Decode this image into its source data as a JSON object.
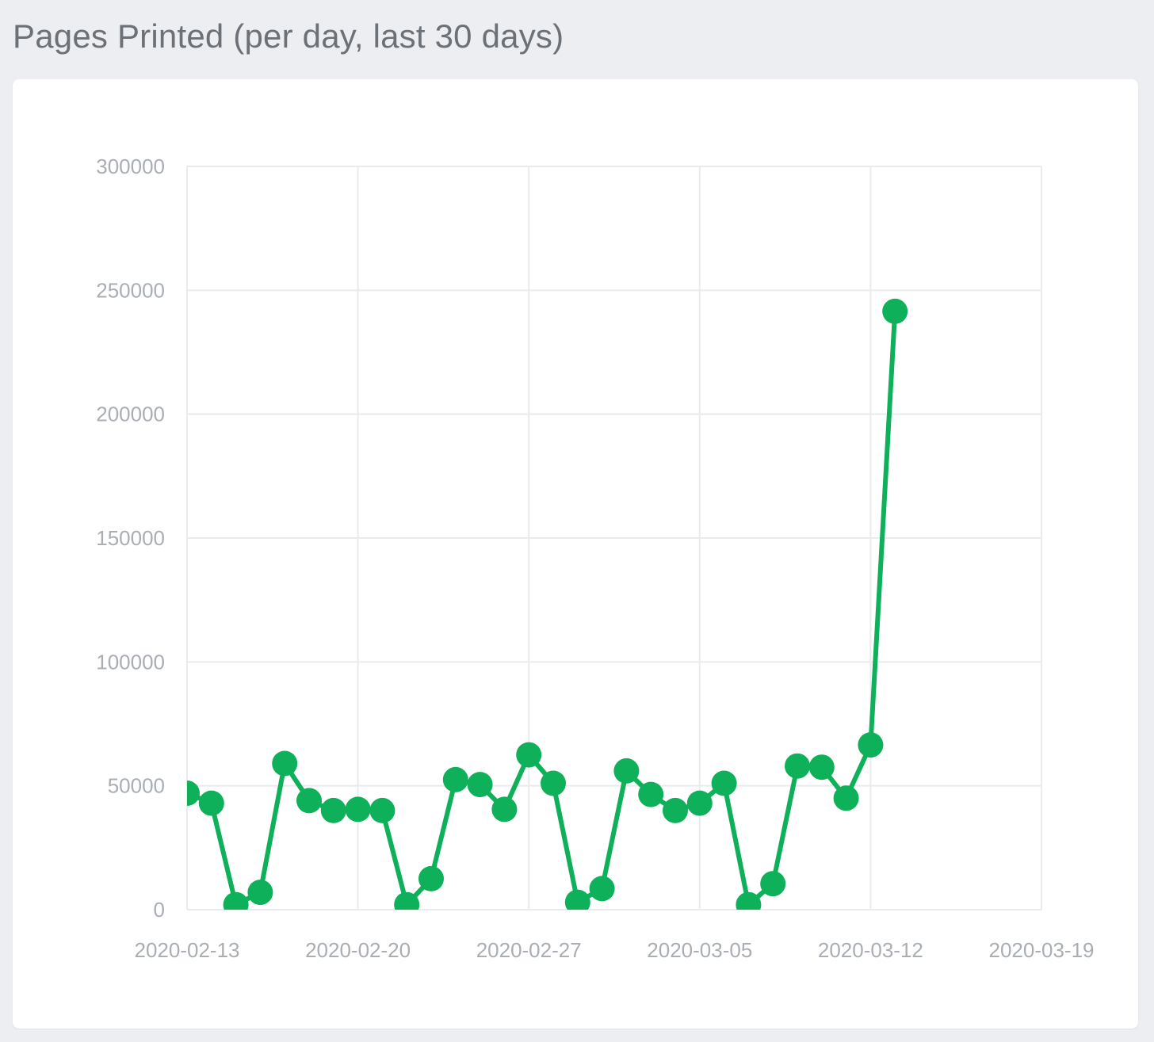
{
  "panel": {
    "title": "Pages Printed (per day, last 30 days)"
  },
  "colors": {
    "background": "#eceef1",
    "card": "#ffffff",
    "grid": "#e9ebee",
    "tick_text": "#a9aeb5",
    "title_text": "#6c7178",
    "series": "#0fb05a"
  },
  "chart_data": {
    "type": "line",
    "title": "",
    "xlabel": "",
    "ylabel": "",
    "x_axis_type": "date",
    "xlim": [
      "2020-02-13",
      "2020-03-19"
    ],
    "ylim": [
      0,
      300000
    ],
    "x_ticks": [
      "2020-02-13",
      "2020-02-20",
      "2020-02-27",
      "2020-03-05",
      "2020-03-12",
      "2020-03-19"
    ],
    "y_ticks": [
      0,
      50000,
      100000,
      150000,
      200000,
      250000,
      300000
    ],
    "grid": true,
    "legend": "none",
    "markers": true,
    "series": [
      {
        "color": "#0fb05a",
        "points": [
          {
            "x": "2020-02-13",
            "y": 47000
          },
          {
            "x": "2020-02-14",
            "y": 43000
          },
          {
            "x": "2020-02-15",
            "y": 2000
          },
          {
            "x": "2020-02-16",
            "y": 7000
          },
          {
            "x": "2020-02-17",
            "y": 59000
          },
          {
            "x": "2020-02-18",
            "y": 44000
          },
          {
            "x": "2020-02-19",
            "y": 40000
          },
          {
            "x": "2020-02-20",
            "y": 40500
          },
          {
            "x": "2020-02-21",
            "y": 40000
          },
          {
            "x": "2020-02-22",
            "y": 2000
          },
          {
            "x": "2020-02-23",
            "y": 12500
          },
          {
            "x": "2020-02-24",
            "y": 52500
          },
          {
            "x": "2020-02-25",
            "y": 50500
          },
          {
            "x": "2020-02-26",
            "y": 40500
          },
          {
            "x": "2020-02-27",
            "y": 62500
          },
          {
            "x": "2020-02-28",
            "y": 51000
          },
          {
            "x": "2020-02-29",
            "y": 3000
          },
          {
            "x": "2020-03-01",
            "y": 8500
          },
          {
            "x": "2020-03-02",
            "y": 56000
          },
          {
            "x": "2020-03-03",
            "y": 46500
          },
          {
            "x": "2020-03-04",
            "y": 40000
          },
          {
            "x": "2020-03-05",
            "y": 43000
          },
          {
            "x": "2020-03-06",
            "y": 51000
          },
          {
            "x": "2020-03-07",
            "y": 2000
          },
          {
            "x": "2020-03-08",
            "y": 10500
          },
          {
            "x": "2020-03-09",
            "y": 58000
          },
          {
            "x": "2020-03-10",
            "y": 57500
          },
          {
            "x": "2020-03-11",
            "y": 45000
          },
          {
            "x": "2020-03-12",
            "y": 66500
          },
          {
            "x": "2020-03-13",
            "y": 241500
          }
        ]
      }
    ]
  }
}
